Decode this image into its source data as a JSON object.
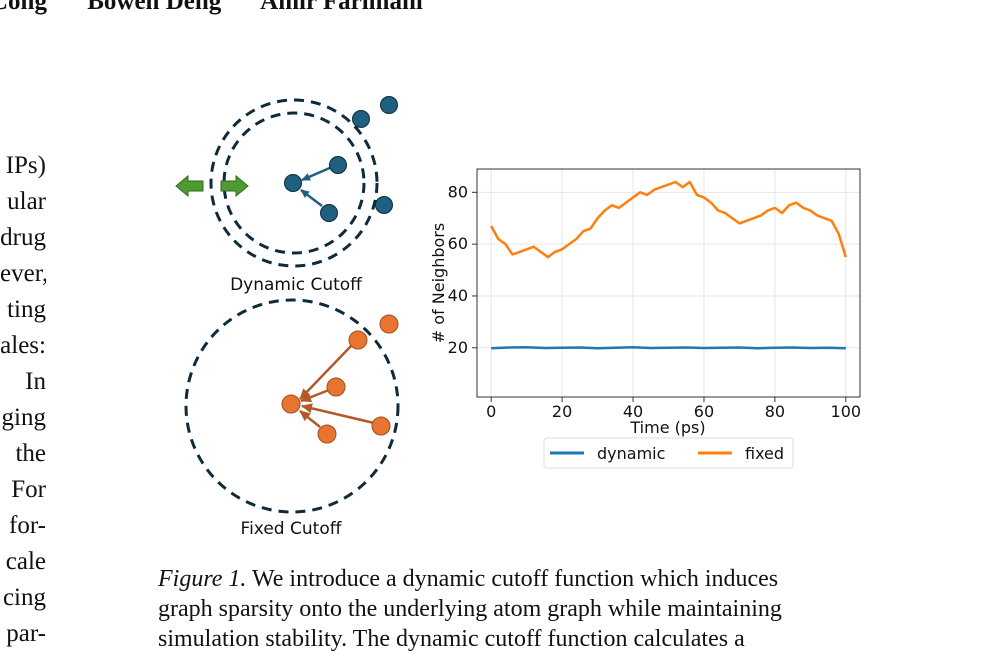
{
  "authors": [
    "Cong",
    "Bowen Deng",
    "Amir Farimani"
  ],
  "left_column_fragments": [
    "IPs)",
    "ular",
    "drug",
    "ever,",
    "ting",
    "ales:",
    "In",
    "ging",
    "the",
    "For",
    "for-",
    "cale",
    "cing",
    "par-"
  ],
  "diagram": {
    "dynamic_label": "Dynamic Cutoff",
    "fixed_label": "Fixed Cutoff",
    "colors": {
      "dynamic_node": "#1f5f7f",
      "fixed_node": "#e8742f",
      "arrow_fixed": "#b05a28",
      "ring": "#0f2a3a",
      "shift_arrow": "#4f9a33"
    }
  },
  "chart_data": {
    "type": "line",
    "xlabel": "Time (ps)",
    "ylabel": "# of Neighbors",
    "xlim": [
      -4,
      104
    ],
    "ylim": [
      1,
      89
    ],
    "xticks": [
      0,
      20,
      40,
      60,
      80,
      100
    ],
    "yticks": [
      20,
      40,
      60,
      80
    ],
    "grid": true,
    "legend_position": "bottom-center",
    "series": [
      {
        "name": "dynamic",
        "color": "#1f77b4",
        "x": [
          0,
          5,
          10,
          15,
          20,
          25,
          30,
          35,
          40,
          45,
          50,
          55,
          60,
          65,
          70,
          75,
          80,
          85,
          90,
          95,
          100
        ],
        "values": [
          19.8,
          20.1,
          20.2,
          19.9,
          20.0,
          20.1,
          19.8,
          20.0,
          20.2,
          19.9,
          20.0,
          20.1,
          19.9,
          20.0,
          20.1,
          19.8,
          20.0,
          20.1,
          19.9,
          20.0,
          19.8
        ]
      },
      {
        "name": "fixed",
        "color": "#ff7f0e",
        "x": [
          0,
          2,
          4,
          6,
          8,
          10,
          12,
          14,
          16,
          18,
          20,
          22,
          24,
          26,
          28,
          30,
          32,
          34,
          36,
          38,
          40,
          42,
          44,
          46,
          48,
          50,
          52,
          54,
          56,
          58,
          60,
          62,
          64,
          66,
          68,
          70,
          72,
          74,
          76,
          78,
          80,
          82,
          84,
          86,
          88,
          90,
          92,
          94,
          96,
          98,
          100
        ],
        "values": [
          67,
          62,
          60,
          56,
          57,
          58,
          59,
          57,
          55,
          57,
          58,
          60,
          62,
          65,
          66,
          70,
          73,
          75,
          74,
          76,
          78,
          80,
          79,
          81,
          82,
          83,
          84,
          82,
          84,
          79,
          78,
          76,
          73,
          72,
          70,
          68,
          69,
          70,
          71,
          73,
          74,
          72,
          75,
          76,
          74,
          73,
          71,
          70,
          69,
          64,
          55
        ]
      }
    ]
  },
  "caption": {
    "label": "Figure 1.",
    "lines": [
      "We introduce a dynamic cutoff function which induces",
      "graph sparsity onto the underlying atom graph while maintaining",
      "simulation stability. The dynamic cutoff function calculates a"
    ]
  }
}
